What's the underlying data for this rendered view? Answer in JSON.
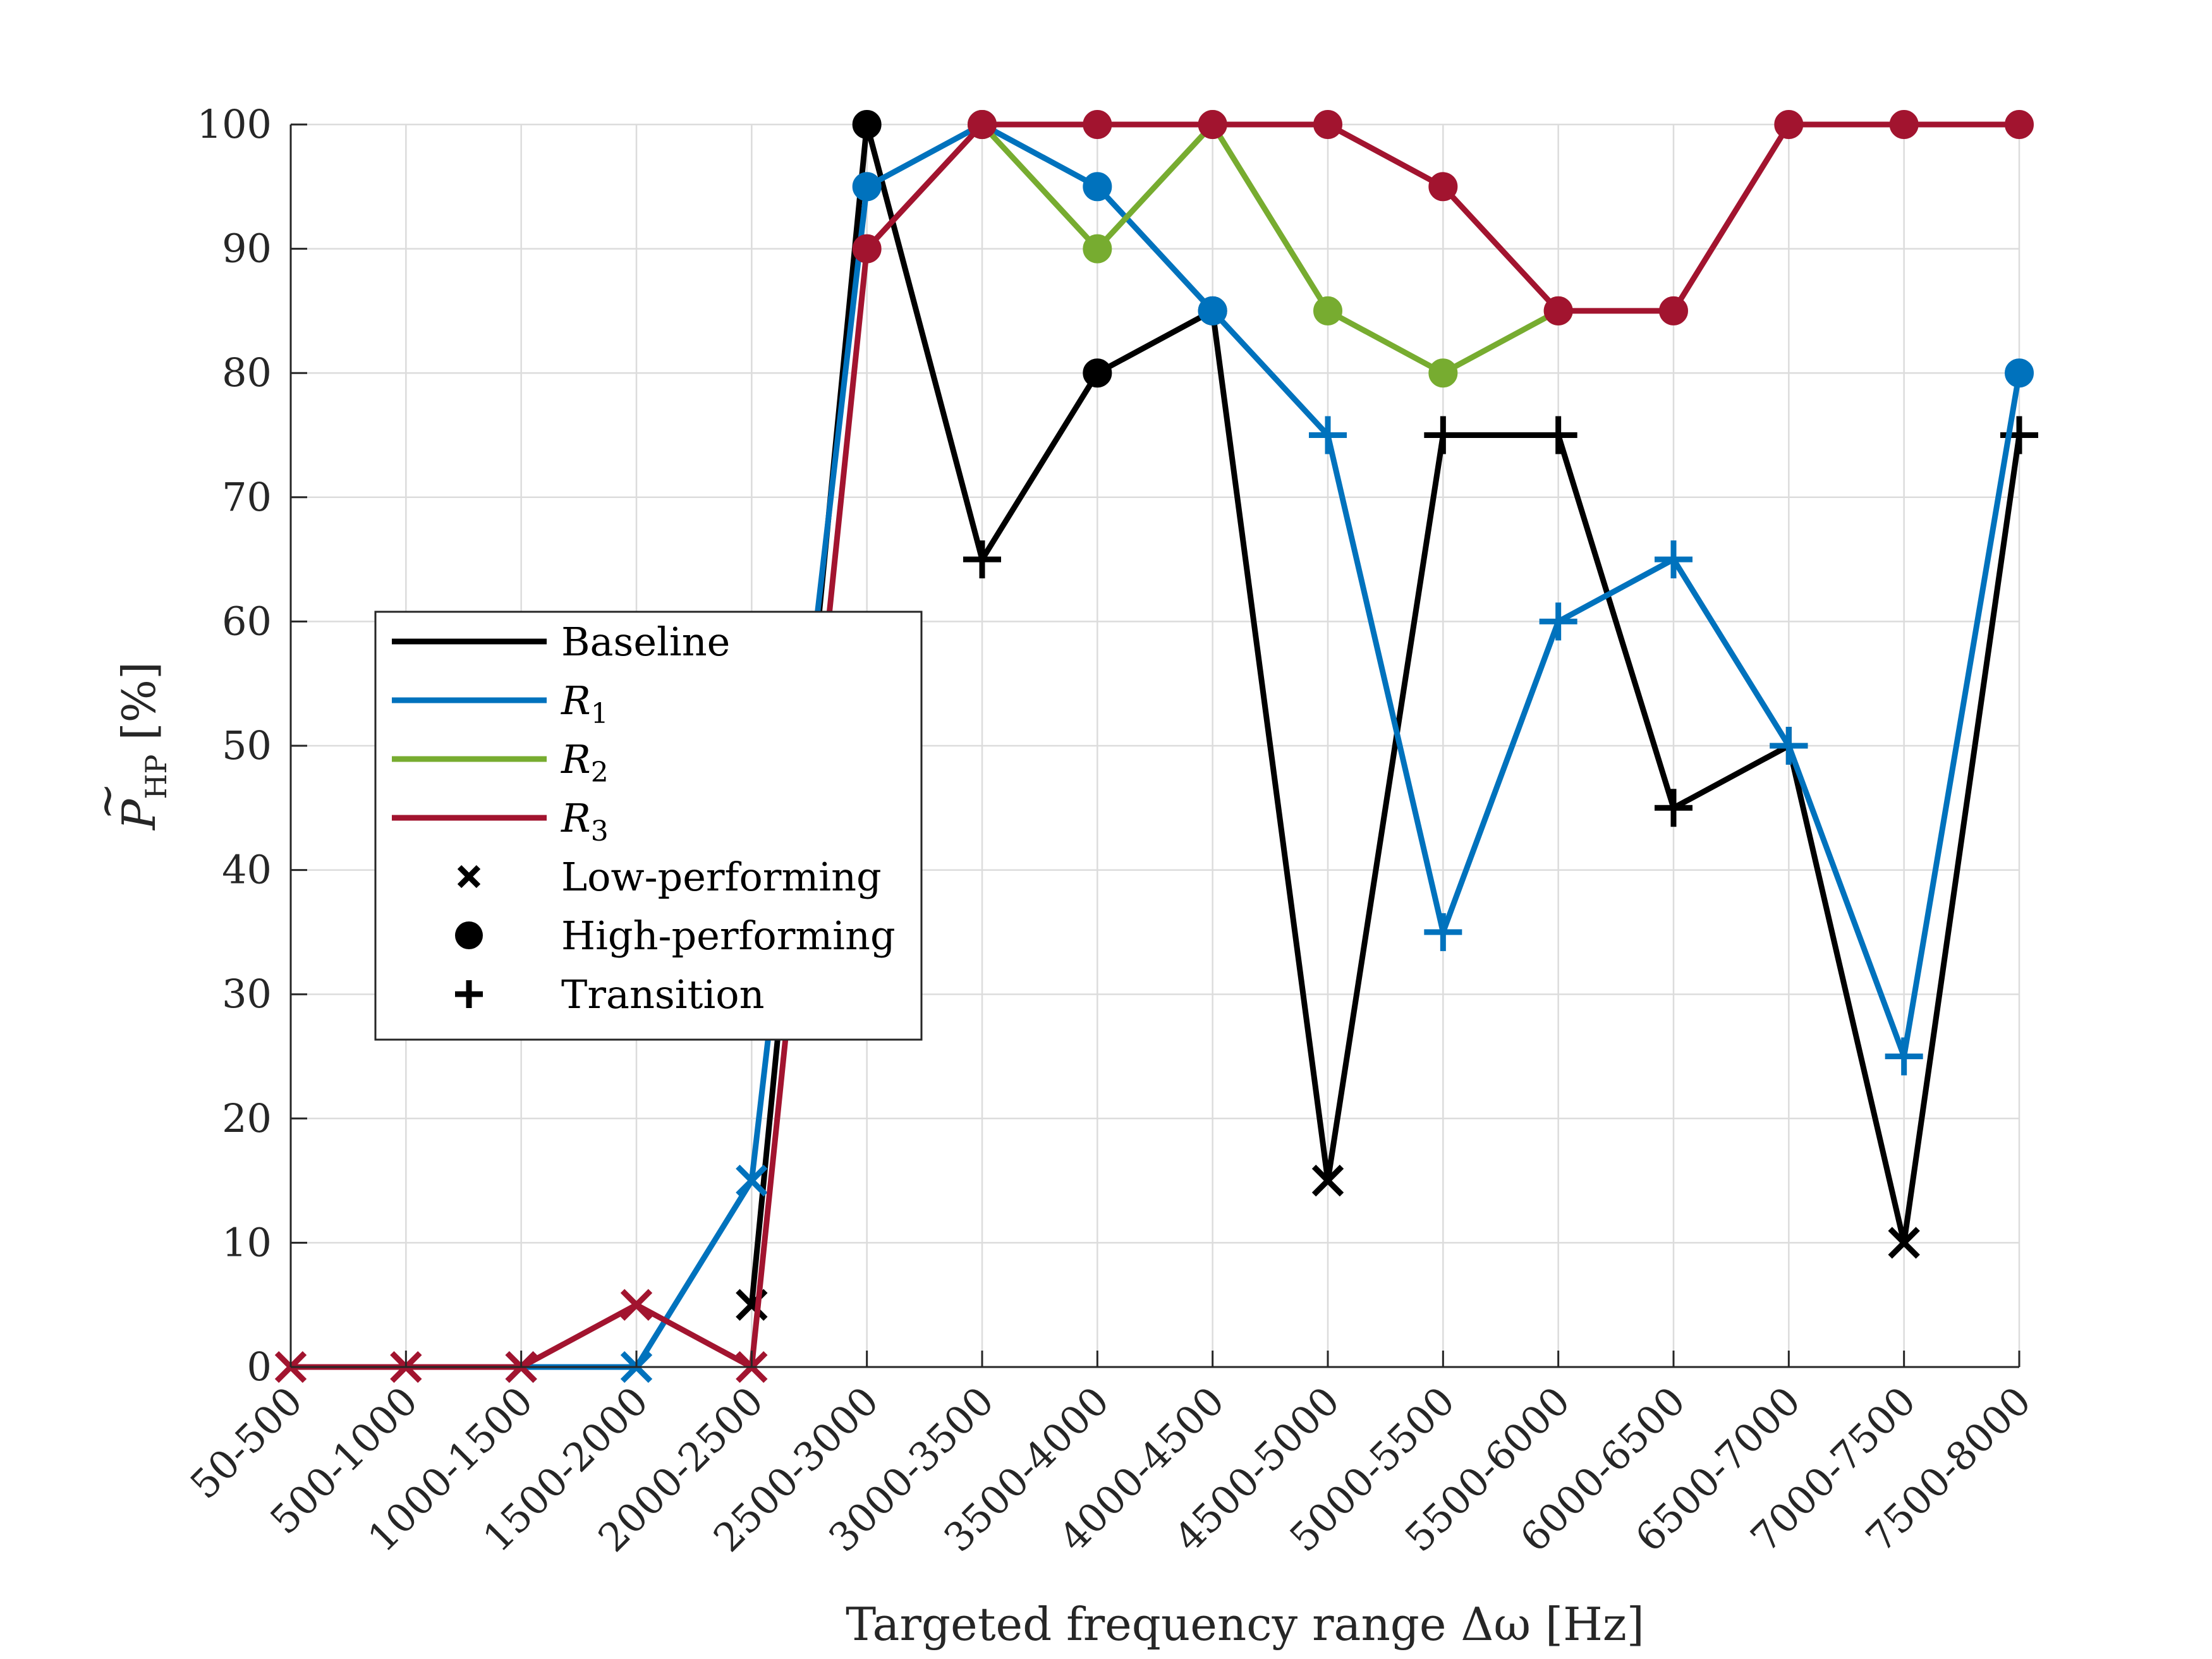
{
  "chart_data": {
    "type": "line",
    "title": "",
    "xlabel": "Targeted frequency range Δω [Hz]",
    "ylabel": {
      "symbol": "P",
      "accent": "~",
      "subscript": "HP",
      "unit": "[%]"
    },
    "ylim": [
      0,
      100
    ],
    "yticks": [
      0,
      10,
      20,
      30,
      40,
      50,
      60,
      70,
      80,
      90,
      100
    ],
    "categories": [
      "50-500",
      "500-1000",
      "1000-1500",
      "1500-2000",
      "2000-2500",
      "2500-3000",
      "3000-3500",
      "3500-4000",
      "4000-4500",
      "4500-5000",
      "5000-5500",
      "5500-6000",
      "6000-6500",
      "6500-7000",
      "7000-7500",
      "7500-8000"
    ],
    "grid": true,
    "legend_position": "center-left",
    "series": [
      {
        "name": "Baseline",
        "label_main": "Baseline",
        "label_sub": "",
        "color": "#000000",
        "values": [
          null,
          null,
          null,
          null,
          5,
          100,
          65,
          80,
          85,
          15,
          75,
          75,
          45,
          50,
          10,
          75
        ],
        "markers": [
          null,
          null,
          null,
          null,
          "x",
          "o",
          "+",
          "o",
          "o",
          "x",
          "+",
          "+",
          "+",
          "+",
          "x",
          "+"
        ]
      },
      {
        "name": "R1",
        "label_main": "R",
        "label_sub": "1",
        "color": "#0072BD",
        "values": [
          null,
          null,
          0,
          0,
          15,
          95,
          100,
          95,
          85,
          75,
          35,
          60,
          65,
          50,
          25,
          80
        ],
        "markers": [
          null,
          null,
          "x",
          "x",
          "x",
          "o",
          "o",
          "o",
          "o",
          "+",
          "+",
          "+",
          "+",
          "+",
          "+",
          "o"
        ]
      },
      {
        "name": "R2",
        "label_main": "R",
        "label_sub": "2",
        "color": "#77AC30",
        "values": [
          null,
          null,
          null,
          null,
          null,
          null,
          100,
          90,
          100,
          85,
          80,
          85,
          null,
          null,
          null,
          null
        ],
        "markers": [
          null,
          null,
          null,
          null,
          null,
          null,
          "o",
          "o",
          "o",
          "o",
          "o",
          "o",
          null,
          null,
          null,
          null
        ]
      },
      {
        "name": "R3",
        "label_main": "R",
        "label_sub": "3",
        "color": "#A2142F",
        "values": [
          0,
          0,
          0,
          5,
          0,
          90,
          100,
          100,
          100,
          100,
          95,
          85,
          85,
          100,
          100,
          100
        ],
        "markers": [
          "x",
          "x",
          "x",
          "x",
          "x",
          "o",
          "o",
          "o",
          "o",
          "o",
          "o",
          "o",
          "o",
          "o",
          "o",
          "o"
        ]
      }
    ],
    "marker_legend": [
      {
        "marker": "x",
        "label": "Low-performing"
      },
      {
        "marker": "o",
        "label": "High-performing"
      },
      {
        "marker": "+",
        "label": "Transition"
      }
    ]
  }
}
